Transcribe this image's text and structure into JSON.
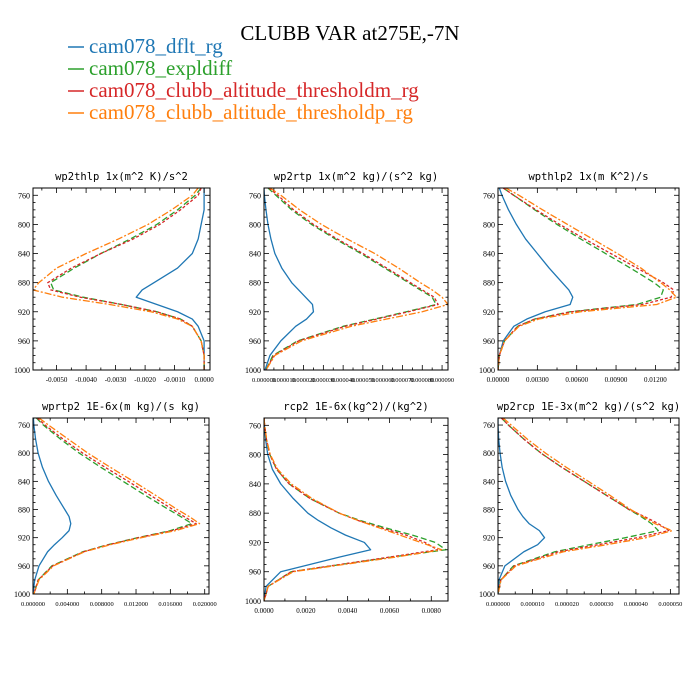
{
  "colors": {
    "series": [
      "#1f77b4",
      "#2ca02c",
      "#d62728",
      "#ff7f0e"
    ],
    "axis": "#000000",
    "background": "#ffffff"
  },
  "chart_data": {
    "title": "CLUBB VAR at275E,-7N",
    "legend_placement": "top-left",
    "series_names": [
      "cam078_dflt_rg",
      "cam078_expldiff",
      "cam078_clubb_altitude_thresholdm_rg",
      "cam078_clubb_altitude_thresholdp_rg"
    ],
    "series_dashes": [
      "",
      "6,3",
      "3,2",
      "7,2,2,2"
    ],
    "y": [
      750,
      760,
      780,
      800,
      820,
      840,
      860,
      880,
      890,
      900,
      910,
      920,
      930,
      940,
      960,
      980,
      1000
    ],
    "panels": [
      {
        "type": "line",
        "title": "wp2thlp   1x(m^2 K)/s^2",
        "xlim": [
          -0.0058,
          0.0002
        ],
        "ylim": [
          1000,
          750
        ],
        "xticks": [
          -0.005,
          -0.004,
          -0.003,
          -0.002,
          -0.001,
          0.0
        ],
        "xtick_labels": [
          "-0.0050",
          "-0.0040",
          "-0.0030",
          "-0.0020",
          "-0.0010",
          "0.0000"
        ],
        "yticks": [
          760,
          800,
          840,
          880,
          920,
          960,
          1000
        ],
        "ytick_labels": [
          "760",
          "800",
          "840",
          "880",
          "920",
          "960",
          "1000"
        ],
        "series": [
          [
            0.0,
            0.0,
            0.0,
            -0.0001,
            -0.0002,
            -0.0004,
            -0.0009,
            -0.0017,
            -0.0021,
            -0.0023,
            -0.0016,
            -0.0009,
            -0.0004,
            -0.0002,
            0.0,
            0.0,
            0.0
          ],
          [
            -0.0001,
            -0.0003,
            -0.0009,
            -0.0016,
            -0.0025,
            -0.0035,
            -0.0044,
            -0.0052,
            -0.0051,
            -0.0041,
            -0.0028,
            -0.0016,
            -0.0008,
            -0.0004,
            -0.0001,
            0.0,
            0.0
          ],
          [
            -0.0001,
            -0.0002,
            -0.0008,
            -0.0015,
            -0.0024,
            -0.0035,
            -0.0045,
            -0.0053,
            -0.0052,
            -0.0042,
            -0.0028,
            -0.0016,
            -0.0008,
            -0.0004,
            -0.0001,
            0.0,
            0.0
          ],
          [
            -0.0002,
            -0.0004,
            -0.0011,
            -0.0019,
            -0.0029,
            -0.004,
            -0.005,
            -0.0056,
            -0.0058,
            -0.0048,
            -0.0032,
            -0.0018,
            -0.0009,
            -0.0004,
            -0.0001,
            0.0,
            0.0
          ]
        ]
      },
      {
        "type": "line",
        "title": "wp2rtp   1x(m^2 kg)/(s^2 kg)",
        "xlim": [
          0.0,
          9.3e-05
        ],
        "ylim": [
          1000,
          750
        ],
        "xticks": [
          0.0,
          1e-05,
          2e-05,
          3e-05,
          4e-05,
          5e-05,
          6e-05,
          7e-05,
          8e-05,
          9e-05
        ],
        "xtick_labels": [
          "0.000000",
          "0.000010",
          "0.000020",
          "0.000030",
          "0.000040",
          "0.000050",
          "0.000060",
          "0.000070",
          "0.000080",
          "0.000090"
        ],
        "yticks": [
          760,
          800,
          840,
          880,
          920,
          960,
          1000
        ],
        "ytick_labels": [
          "760",
          "800",
          "840",
          "880",
          "920",
          "960",
          "1000"
        ],
        "series": [
          [
            0.0,
            2e-07,
            1e-06,
            2e-06,
            3.5e-06,
            5.5e-06,
            9e-06,
            1.4e-05,
            1.75e-05,
            2.1e-05,
            2.45e-05,
            2.5e-05,
            2.15e-05,
            1.6e-05,
            8.5e-06,
            3e-06,
            5e-07
          ],
          [
            2e-06,
            6e-06,
            1.4e-05,
            2.4e-05,
            3.6e-05,
            4.9e-05,
            6.1e-05,
            7.3e-05,
            7.9e-05,
            8.5e-05,
            8.7e-05,
            7.2e-05,
            5.6e-05,
            4e-05,
            1.7e-05,
            4.5e-06,
            1e-06
          ],
          [
            2.5e-06,
            7e-06,
            1.5e-05,
            2.5e-05,
            3.7e-05,
            5e-05,
            6.2e-05,
            7.4e-05,
            8e-05,
            8.6e-05,
            8.8e-05,
            7.3e-05,
            5.7e-05,
            4.1e-05,
            1.75e-05,
            5e-06,
            1e-06
          ],
          [
            3e-06,
            8.5e-06,
            1.8e-05,
            2.9e-05,
            4.2e-05,
            5.6e-05,
            6.8e-05,
            7.9e-05,
            8.5e-05,
            9e-05,
            9.3e-05,
            8e-05,
            6.2e-05,
            4.4e-05,
            1.9e-05,
            5.5e-06,
            1e-06
          ]
        ]
      },
      {
        "type": "line",
        "title": "wpthlp2   1x(m K^2)/s",
        "xlim": [
          0.0,
          0.0138
        ],
        "ylim": [
          1000,
          750
        ],
        "xticks": [
          0.0,
          0.003,
          0.006,
          0.009,
          0.012
        ],
        "xtick_labels": [
          "0.00000",
          "0.00300",
          "0.00600",
          "0.00900",
          "0.01200"
        ],
        "yticks": [
          760,
          800,
          840,
          880,
          920,
          960,
          1000
        ],
        "ytick_labels": [
          "760",
          "800",
          "840",
          "880",
          "920",
          "960",
          "1000"
        ],
        "series": [
          [
            0.0001,
            0.0003,
            0.0008,
            0.0014,
            0.0021,
            0.003,
            0.0039,
            0.0049,
            0.0054,
            0.0057,
            0.0055,
            0.0036,
            0.0022,
            0.0012,
            0.0004,
            0.0001,
            0.0
          ],
          [
            0.0004,
            0.0012,
            0.0028,
            0.0045,
            0.0063,
            0.0082,
            0.0101,
            0.0119,
            0.0126,
            0.0124,
            0.0106,
            0.0055,
            0.0028,
            0.0015,
            0.0005,
            0.0001,
            0.0
          ],
          [
            0.0004,
            0.0012,
            0.0029,
            0.0047,
            0.0066,
            0.0086,
            0.0106,
            0.0126,
            0.0134,
            0.0132,
            0.011,
            0.0056,
            0.0028,
            0.0015,
            0.0005,
            0.0001,
            0.0
          ],
          [
            0.0006,
            0.0016,
            0.0034,
            0.0053,
            0.0072,
            0.0091,
            0.0109,
            0.0124,
            0.0131,
            0.0136,
            0.0121,
            0.0063,
            0.0031,
            0.0016,
            0.0005,
            0.0001,
            0.0
          ]
        ]
      },
      {
        "type": "line",
        "title": "wprtp2   1E-6x(m kg)/(s kg)",
        "xlim": [
          0.0,
          0.0205
        ],
        "ylim": [
          1000,
          750
        ],
        "xticks": [
          0.0,
          0.004,
          0.008,
          0.012,
          0.016,
          0.02
        ],
        "xtick_labels": [
          "0.000000",
          "0.004000",
          "0.008000",
          "0.012000",
          "0.016000",
          "0.020000"
        ],
        "yticks": [
          760,
          800,
          840,
          880,
          920,
          960,
          1000
        ],
        "ytick_labels": [
          "760",
          "800",
          "840",
          "880",
          "920",
          "960",
          "1000"
        ],
        "series": [
          [
            5e-05,
            0.0001,
            0.0003,
            0.0006,
            0.0011,
            0.0018,
            0.0027,
            0.0037,
            0.0042,
            0.0044,
            0.0042,
            0.0034,
            0.0025,
            0.0017,
            0.0007,
            0.0002,
            0.0
          ],
          [
            0.0004,
            0.0012,
            0.0032,
            0.0054,
            0.0079,
            0.0105,
            0.0131,
            0.0158,
            0.0172,
            0.0185,
            0.016,
            0.0122,
            0.0087,
            0.0058,
            0.0022,
            0.0006,
            0.0001
          ],
          [
            0.0005,
            0.0014,
            0.0035,
            0.0058,
            0.0084,
            0.0111,
            0.0137,
            0.0163,
            0.0176,
            0.019,
            0.0162,
            0.0123,
            0.0088,
            0.0059,
            0.0023,
            0.0006,
            0.0001
          ],
          [
            0.0007,
            0.0018,
            0.0041,
            0.0064,
            0.009,
            0.0117,
            0.0143,
            0.0168,
            0.0182,
            0.0194,
            0.0166,
            0.0126,
            0.009,
            0.006,
            0.0024,
            0.0007,
            0.0001
          ]
        ]
      },
      {
        "type": "line",
        "title": "rcp2   1E-6x(kg^2)/(kg^2)",
        "xlim": [
          0.0,
          0.0088
        ],
        "ylim": [
          1000,
          750
        ],
        "xticks": [
          0.0,
          0.002,
          0.004,
          0.006,
          0.008
        ],
        "xtick_labels": [
          "0.0000",
          "0.0020",
          "0.0040",
          "0.0060",
          "0.0080"
        ],
        "yticks": [
          760,
          800,
          840,
          880,
          920,
          960,
          1000
        ],
        "ytick_labels": [
          "760",
          "800",
          "840",
          "880",
          "920",
          "960",
          "1000"
        ],
        "series": [
          [
            0.0,
            2e-05,
            8e-05,
            0.00018,
            0.0004,
            0.0008,
            0.0014,
            0.0021,
            0.0026,
            0.0032,
            0.0039,
            0.0048,
            0.0051,
            0.0036,
            0.0008,
            0.0001,
            0.0
          ],
          [
            0.0,
            3e-05,
            0.00012,
            0.00028,
            0.0006,
            0.0012,
            0.0022,
            0.0036,
            0.0046,
            0.0058,
            0.0071,
            0.0082,
            0.0087,
            0.0061,
            0.0013,
            0.0002,
            0.0
          ],
          [
            0.0,
            3e-05,
            0.00012,
            0.00028,
            0.0006,
            0.0012,
            0.0022,
            0.0036,
            0.0045,
            0.0056,
            0.0068,
            0.0077,
            0.0083,
            0.006,
            0.0013,
            0.0002,
            0.0
          ],
          [
            0.0,
            3e-05,
            0.00013,
            0.0003,
            0.00065,
            0.0013,
            0.0023,
            0.0036,
            0.0045,
            0.0055,
            0.0065,
            0.0075,
            0.0085,
            0.0063,
            0.0014,
            0.0002,
            0.0
          ]
        ]
      },
      {
        "type": "line",
        "title": "wp2rcp   1E-3x(m^2 kg)/(s^2 kg)",
        "xlim": [
          0.0,
          5.25e-05
        ],
        "ylim": [
          1000,
          750
        ],
        "xticks": [
          0.0,
          1e-05,
          2e-05,
          3e-05,
          4e-05,
          5e-05
        ],
        "xtick_labels": [
          "0.000000",
          "0.000010",
          "0.000020",
          "0.000030",
          "0.000040",
          "0.000050"
        ],
        "yticks": [
          760,
          800,
          840,
          880,
          920,
          960,
          1000
        ],
        "ytick_labels": [
          "760",
          "800",
          "840",
          "880",
          "920",
          "960",
          "1000"
        ],
        "series": [
          [
            0.0,
            0.0,
            2e-07,
            6e-07,
            1.2e-06,
            2.2e-06,
            3.7e-06,
            5.8e-06,
            7.2e-06,
            9e-06,
            1.2e-05,
            1.35e-05,
            1.15e-05,
            7.5e-06,
            2e-06,
            3e-07,
            0.0
          ],
          [
            1e-06,
            3e-06,
            7.5e-06,
            1.25e-05,
            1.85e-05,
            2.5e-05,
            3.15e-05,
            3.8e-05,
            4.15e-05,
            4.45e-05,
            4.65e-05,
            3.7e-05,
            2.65e-05,
            1.65e-05,
            4.5e-06,
            8e-07,
            0.0
          ],
          [
            1e-06,
            3e-06,
            7.5e-06,
            1.25e-05,
            1.85e-05,
            2.5e-05,
            3.15e-05,
            3.8e-05,
            4.25e-05,
            4.65e-05,
            4.95e-05,
            4.05e-05,
            2.9e-05,
            1.75e-05,
            4.8e-06,
            8e-07,
            0.0
          ],
          [
            1.5e-06,
            3.8e-06,
            8.5e-06,
            1.38e-05,
            1.98e-05,
            2.62e-05,
            3.25e-05,
            3.85e-05,
            4.2e-05,
            4.55e-05,
            5.05e-05,
            4.3e-05,
            3.15e-05,
            1.9e-05,
            5.2e-06,
            9e-07,
            0.0
          ]
        ]
      }
    ]
  }
}
